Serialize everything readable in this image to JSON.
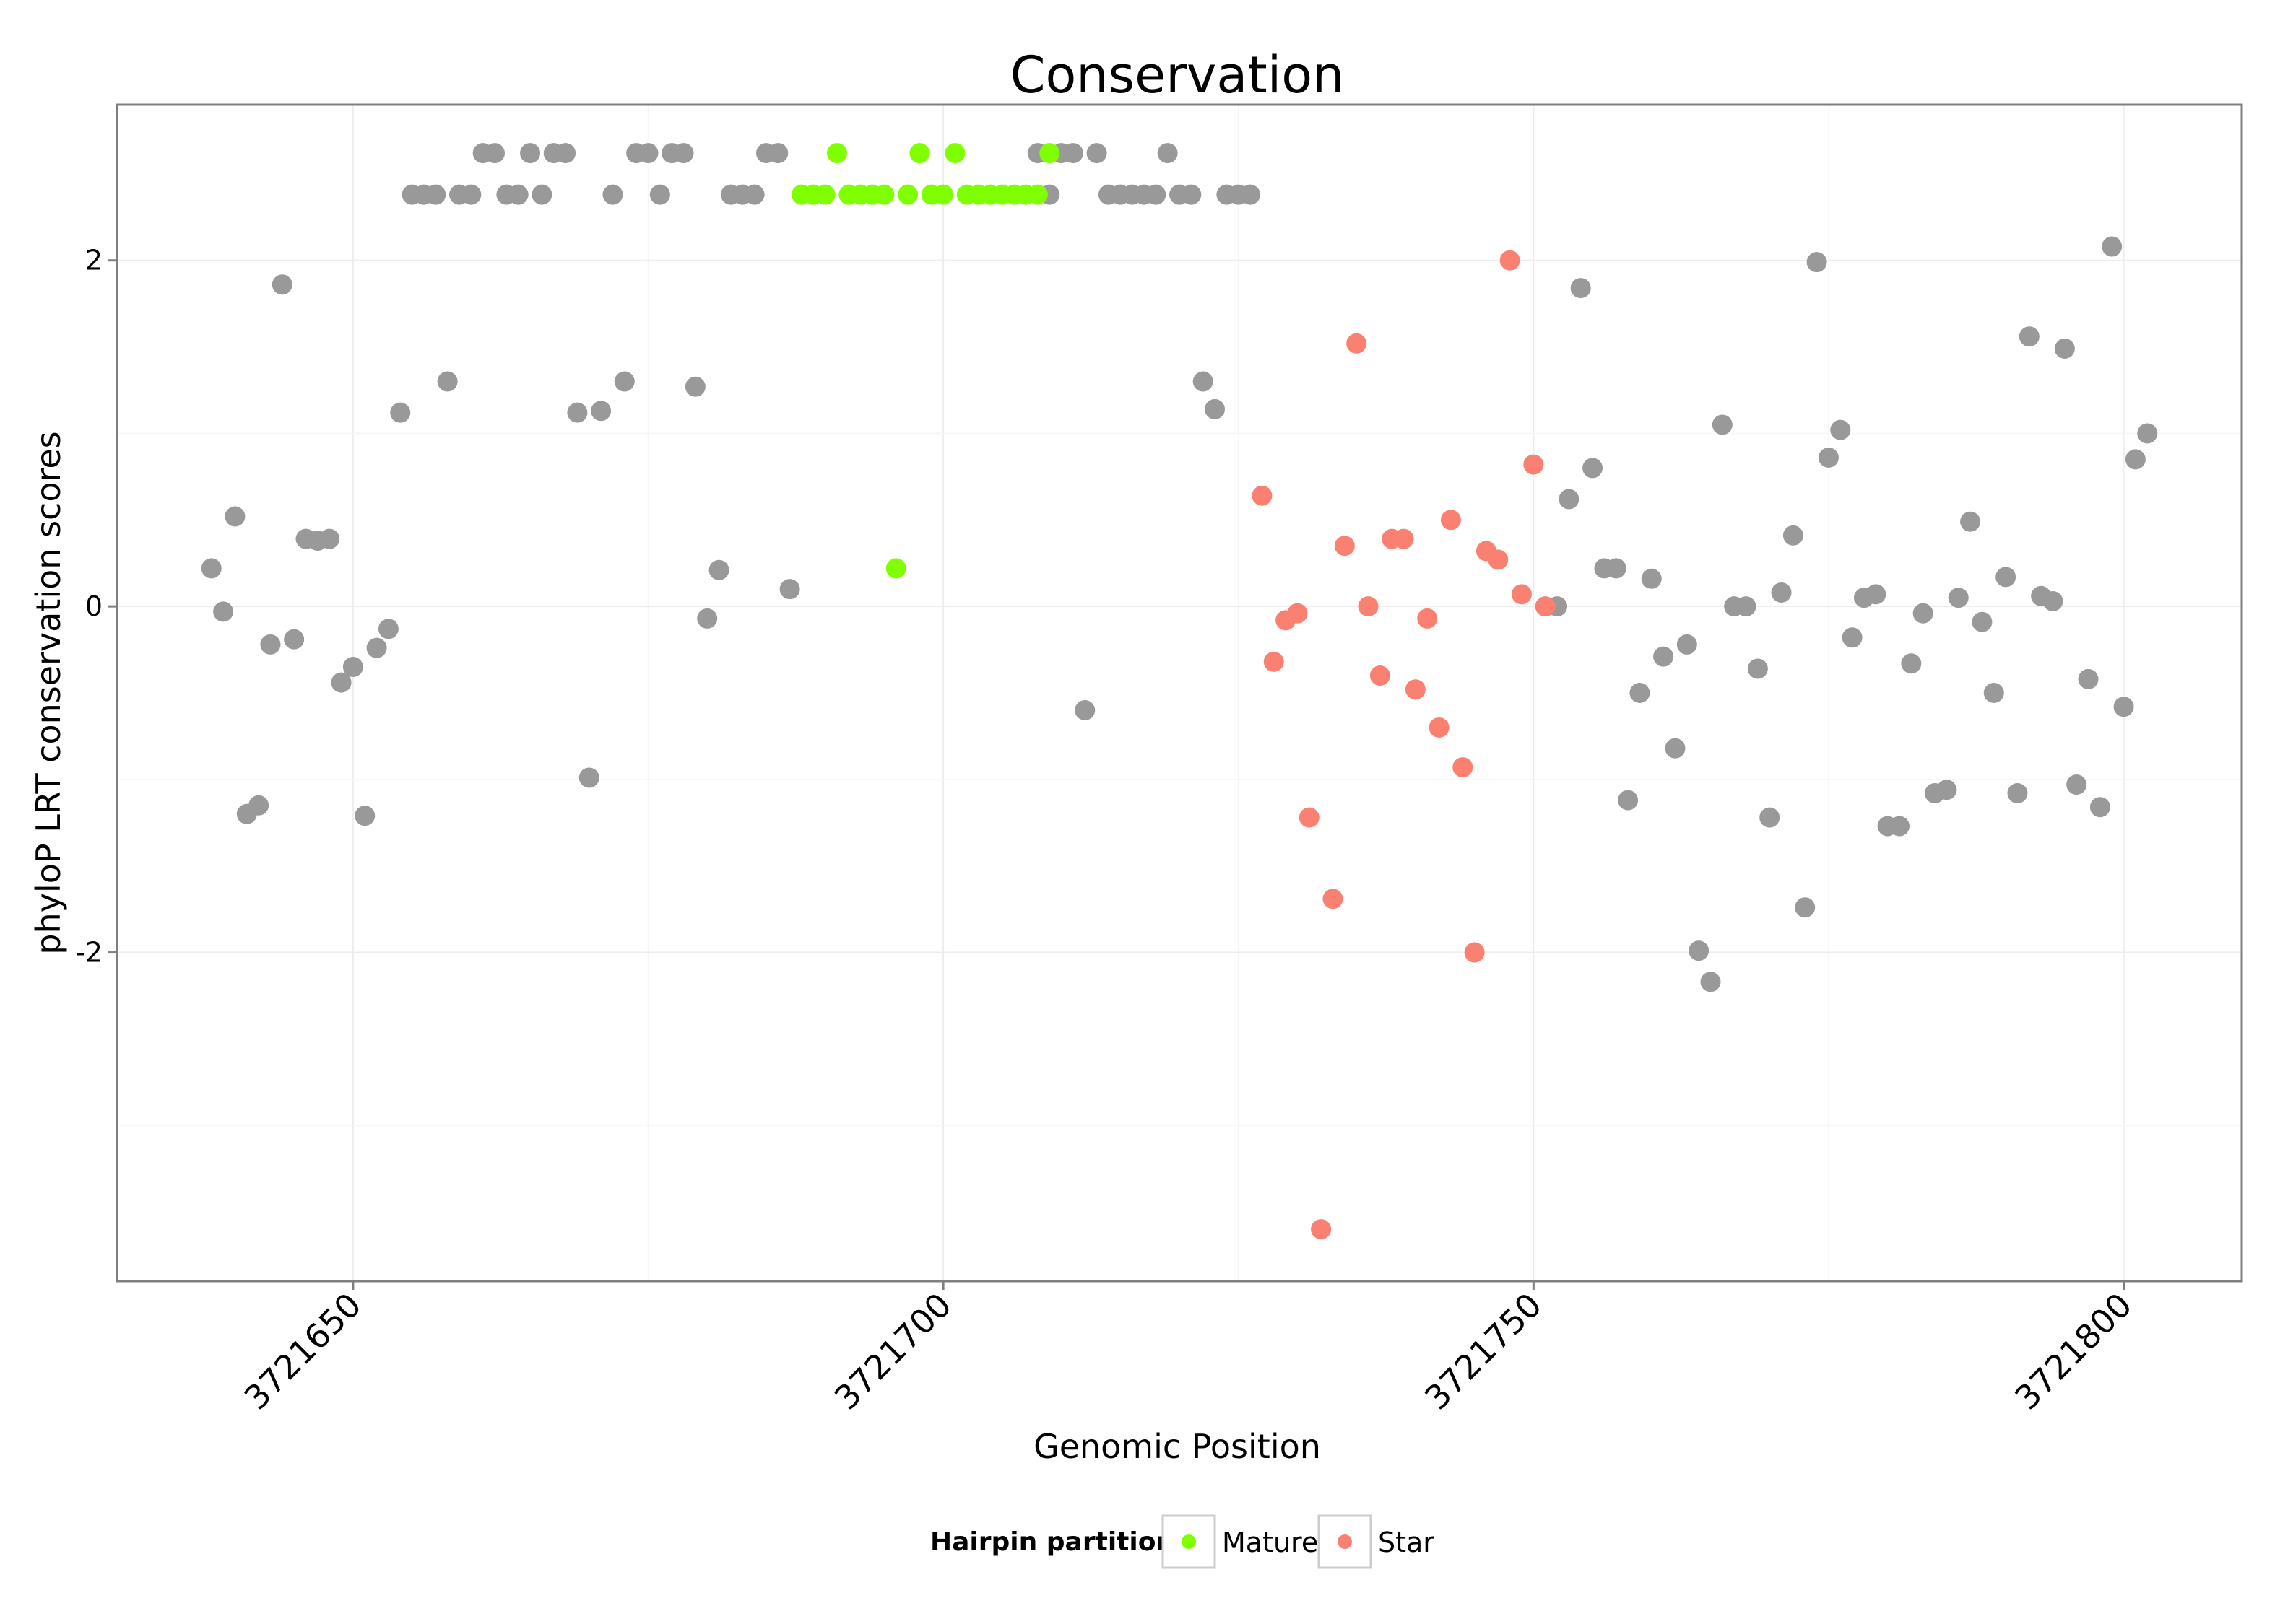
{
  "chart_data": {
    "type": "scatter",
    "title": "Conservation",
    "xlabel": "Genomic Position",
    "ylabel": "phyloP LRT conservation scores",
    "xlim": [
      3721630,
      3721810
    ],
    "ylim": [
      -3.9,
      2.9
    ],
    "x_ticks": [
      3721650,
      3721700,
      3721750,
      3721800
    ],
    "x_tick_labels": [
      "3721650",
      "3721700",
      "3721750",
      "3721800"
    ],
    "y_ticks": [
      -2,
      0,
      2
    ],
    "y_tick_labels": [
      "-2",
      "0",
      "2"
    ],
    "grid": true,
    "legend": {
      "title": "Hairpin partition",
      "position": "bottom",
      "entries": [
        {
          "name": "Mature",
          "color": "#7FFF00"
        },
        {
          "name": "Star",
          "color": "#FA8072"
        }
      ]
    },
    "colors": {
      "Other": "#999999",
      "Mature": "#7FFF00",
      "Star": "#FA8072"
    },
    "series": [
      {
        "name": "Other",
        "points": [
          [
            3721638,
            0.22
          ],
          [
            3721639,
            -0.03
          ],
          [
            3721640,
            0.52
          ],
          [
            3721641,
            -1.2
          ],
          [
            3721642,
            -1.15
          ],
          [
            3721643,
            -0.22
          ],
          [
            3721644,
            1.86
          ],
          [
            3721645,
            -0.19
          ],
          [
            3721646,
            0.39
          ],
          [
            3721647,
            0.38
          ],
          [
            3721648,
            0.39
          ],
          [
            3721649,
            -0.44
          ],
          [
            3721650,
            -0.35
          ],
          [
            3721651,
            -1.21
          ],
          [
            3721652,
            -0.24
          ],
          [
            3721653,
            -0.13
          ],
          [
            3721654,
            1.12
          ],
          [
            3721655,
            2.38
          ],
          [
            3721656,
            2.38
          ],
          [
            3721657,
            2.38
          ],
          [
            3721658,
            1.3
          ],
          [
            3721659,
            2.38
          ],
          [
            3721660,
            2.38
          ],
          [
            3721661,
            2.62
          ],
          [
            3721662,
            2.62
          ],
          [
            3721663,
            2.38
          ],
          [
            3721664,
            2.38
          ],
          [
            3721665,
            2.62
          ],
          [
            3721666,
            2.38
          ],
          [
            3721667,
            2.62
          ],
          [
            3721668,
            2.62
          ],
          [
            3721669,
            1.12
          ],
          [
            3721670,
            -0.99
          ],
          [
            3721671,
            1.13
          ],
          [
            3721672,
            2.38
          ],
          [
            3721673,
            1.3
          ],
          [
            3721674,
            2.62
          ],
          [
            3721675,
            2.62
          ],
          [
            3721676,
            2.38
          ],
          [
            3721677,
            2.62
          ],
          [
            3721678,
            2.62
          ],
          [
            3721679,
            1.27
          ],
          [
            3721680,
            -0.07
          ],
          [
            3721681,
            0.21
          ],
          [
            3721682,
            2.38
          ],
          [
            3721683,
            2.38
          ],
          [
            3721684,
            2.38
          ],
          [
            3721685,
            2.62
          ],
          [
            3721686,
            2.62
          ],
          [
            3721687,
            0.1
          ],
          [
            3721708,
            2.62
          ],
          [
            3721709,
            2.38
          ],
          [
            3721710,
            2.62
          ],
          [
            3721711,
            2.62
          ],
          [
            3721712,
            -0.6
          ],
          [
            3721713,
            2.62
          ],
          [
            3721714,
            2.38
          ],
          [
            3721715,
            2.38
          ],
          [
            3721716,
            2.38
          ],
          [
            3721717,
            2.38
          ],
          [
            3721718,
            2.38
          ],
          [
            3721719,
            2.62
          ],
          [
            3721720,
            2.38
          ],
          [
            3721721,
            2.38
          ],
          [
            3721722,
            1.3
          ],
          [
            3721723,
            1.14
          ],
          [
            3721724,
            2.38
          ],
          [
            3721725,
            2.38
          ],
          [
            3721726,
            2.38
          ],
          [
            3721752,
            0.0
          ],
          [
            3721753,
            0.62
          ],
          [
            3721754,
            1.84
          ],
          [
            3721755,
            0.8
          ],
          [
            3721756,
            0.22
          ],
          [
            3721757,
            0.22
          ],
          [
            3721758,
            -1.12
          ],
          [
            3721759,
            -0.5
          ],
          [
            3721760,
            0.16
          ],
          [
            3721761,
            -0.29
          ],
          [
            3721762,
            -0.82
          ],
          [
            3721763,
            -0.22
          ],
          [
            3721764,
            -1.99
          ],
          [
            3721765,
            -2.17
          ],
          [
            3721766,
            1.05
          ],
          [
            3721767,
            0.0
          ],
          [
            3721768,
            0.0
          ],
          [
            3721769,
            -0.36
          ],
          [
            3721770,
            -1.22
          ],
          [
            3721771,
            0.08
          ],
          [
            3721772,
            0.41
          ],
          [
            3721773,
            -1.74
          ],
          [
            3721774,
            1.99
          ],
          [
            3721775,
            0.86
          ],
          [
            3721776,
            1.02
          ],
          [
            3721777,
            -0.18
          ],
          [
            3721778,
            0.05
          ],
          [
            3721779,
            0.07
          ],
          [
            3721780,
            -1.27
          ],
          [
            3721781,
            -1.27
          ],
          [
            3721782,
            -0.33
          ],
          [
            3721783,
            -0.04
          ],
          [
            3721784,
            -1.08
          ],
          [
            3721785,
            -1.06
          ],
          [
            3721786,
            0.05
          ],
          [
            3721787,
            0.49
          ],
          [
            3721788,
            -0.09
          ],
          [
            3721789,
            -0.5
          ],
          [
            3721790,
            0.17
          ],
          [
            3721791,
            -1.08
          ],
          [
            3721792,
            1.56
          ],
          [
            3721793,
            0.06
          ],
          [
            3721794,
            0.03
          ],
          [
            3721795,
            1.49
          ],
          [
            3721796,
            -1.03
          ],
          [
            3721797,
            -0.42
          ],
          [
            3721798,
            -1.16
          ],
          [
            3721799,
            2.08
          ],
          [
            3721800,
            -0.58
          ],
          [
            3721801,
            0.85
          ],
          [
            3721802,
            1.0
          ]
        ]
      },
      {
        "name": "Mature",
        "points": [
          [
            3721688,
            2.38
          ],
          [
            3721689,
            2.38
          ],
          [
            3721690,
            2.38
          ],
          [
            3721691,
            2.62
          ],
          [
            3721692,
            2.38
          ],
          [
            3721693,
            2.38
          ],
          [
            3721694,
            2.38
          ],
          [
            3721695,
            2.38
          ],
          [
            3721696,
            0.22
          ],
          [
            3721697,
            2.38
          ],
          [
            3721698,
            2.62
          ],
          [
            3721699,
            2.38
          ],
          [
            3721700,
            2.38
          ],
          [
            3721701,
            2.62
          ],
          [
            3721702,
            2.38
          ],
          [
            3721703,
            2.38
          ],
          [
            3721704,
            2.38
          ],
          [
            3721705,
            2.38
          ],
          [
            3721706,
            2.38
          ],
          [
            3721707,
            2.38
          ],
          [
            3721708,
            2.38
          ],
          [
            3721709,
            2.62
          ]
        ]
      },
      {
        "name": "Star",
        "points": [
          [
            3721727,
            0.64
          ],
          [
            3721728,
            -0.32
          ],
          [
            3721729,
            -0.08
          ],
          [
            3721730,
            -0.04
          ],
          [
            3721731,
            -1.22
          ],
          [
            3721732,
            -3.6
          ],
          [
            3721733,
            -1.69
          ],
          [
            3721734,
            0.35
          ],
          [
            3721735,
            1.52
          ],
          [
            3721736,
            0.0
          ],
          [
            3721737,
            -0.4
          ],
          [
            3721738,
            0.39
          ],
          [
            3721739,
            0.39
          ],
          [
            3721740,
            -0.48
          ],
          [
            3721741,
            -0.07
          ],
          [
            3721742,
            -0.7
          ],
          [
            3721743,
            0.5
          ],
          [
            3721744,
            -0.93
          ],
          [
            3721745,
            -2.0
          ],
          [
            3721746,
            0.32
          ],
          [
            3721747,
            0.27
          ],
          [
            3721748,
            2.0
          ],
          [
            3721749,
            0.07
          ],
          [
            3721750,
            0.82
          ],
          [
            3721751,
            0.0
          ]
        ]
      }
    ]
  }
}
